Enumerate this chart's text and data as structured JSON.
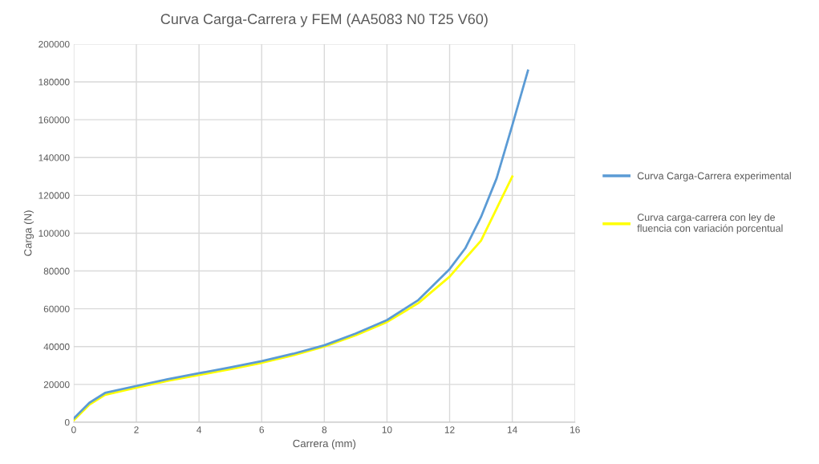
{
  "chart_data": {
    "type": "line",
    "title": "Curva Carga-Carrera y FEM (AA5083 N0 T25 V60)",
    "xlabel": "Carrera (mm)",
    "ylabel": "Carga (N)",
    "xlim": [
      0,
      16
    ],
    "xticks": [
      0,
      2,
      4,
      6,
      8,
      10,
      12,
      14,
      16
    ],
    "ylim": [
      0,
      200000
    ],
    "yticks": [
      0,
      20000,
      40000,
      60000,
      80000,
      100000,
      120000,
      140000,
      160000,
      180000,
      200000
    ],
    "grid": true,
    "legend": "right",
    "marker": "none",
    "line_style": "solid",
    "series": [
      {
        "name": "Curva Carga-Carrera experimental",
        "color": "#5b9bd5",
        "x": [
          0,
          0.5,
          1,
          2,
          3,
          4,
          5,
          6,
          7,
          8,
          9,
          10,
          11,
          12,
          12.5,
          13,
          13.5,
          14,
          14.5
        ],
        "values": [
          2000,
          10300,
          15500,
          19200,
          22800,
          25900,
          29000,
          32300,
          36200,
          40700,
          46900,
          54000,
          64600,
          81000,
          92000,
          108500,
          129000,
          157000,
          186000
        ]
      },
      {
        "name": "Curva carga-carrera con ley de fluencia con variación porcentual",
        "color": "#ffff00",
        "x": [
          0,
          0.5,
          1,
          2,
          3,
          4,
          5,
          6,
          7,
          8,
          9,
          10,
          11,
          12,
          12.5,
          13,
          13.5,
          14
        ],
        "values": [
          1000,
          9300,
          14500,
          18300,
          21900,
          25000,
          28100,
          31400,
          35400,
          40000,
          46000,
          53000,
          63000,
          77000,
          86600,
          96000,
          113000,
          130000
        ]
      }
    ]
  }
}
